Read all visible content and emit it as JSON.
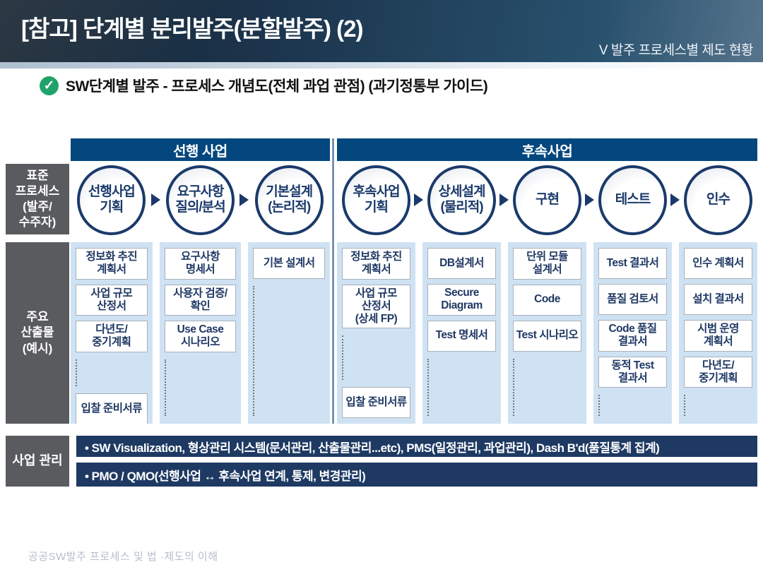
{
  "header": {
    "title": "[참고] 단계별 분리발주(분할발주) (2)",
    "breadcrumb": "V 발주 프로세스별 제도 현황"
  },
  "subtitle": {
    "icon": "check-badge",
    "check_glyph": "✓",
    "text": "SW단계별 발주 - 프로세스 개념도(전체 과업 관점) (과기정통부 가이드)"
  },
  "diagram": {
    "row_labels": {
      "process": "표준\n프로세스\n(발주/\n수주자)",
      "outputs": "주요\n산출물\n(예시)",
      "management": "사업 관리"
    },
    "sections": [
      {
        "title": "선행 사업",
        "phases": [
          {
            "name": "선행사업\n기획",
            "outputs": [
              "정보화 추진\n계획서",
              "사업 규모\n산정서",
              "다년도/\n중기계획"
            ],
            "tail": "입찰 준비서류"
          },
          {
            "name": "요구사항\n질의/분석",
            "outputs": [
              "요구사항\n명세서",
              "사용자 검증/\n확인",
              "Use Case\n시나리오"
            ]
          },
          {
            "name": "기본설계\n(논리적)",
            "outputs": [
              "기본 설계서"
            ]
          }
        ]
      },
      {
        "title": "후속사업",
        "phases": [
          {
            "name": "후속사업\n기획",
            "outputs": [
              "정보화 추진\n계획서",
              "사업 규모\n산정서\n(상세 FP)"
            ],
            "tail": "입찰 준비서류"
          },
          {
            "name": "상세설계\n(물리적)",
            "outputs": [
              "DB설계서",
              "Secure\nDiagram",
              "Test 명세서"
            ]
          },
          {
            "name": "구현",
            "outputs": [
              "단위 모듈\n설계서",
              "Code",
              "Test 시나리오"
            ]
          },
          {
            "name": "테스트",
            "outputs": [
              "Test 결과서",
              "품질 검토서",
              "Code 품질\n결과서",
              "동적 Test\n결과서"
            ]
          },
          {
            "name": "인수",
            "outputs": [
              "인수 계획서",
              "설치 결과서",
              "시범 운영\n계획서",
              "다년도/\n중기계획"
            ]
          }
        ]
      }
    ],
    "management": {
      "bullets": [
        "• SW Visualization, 형상관리 시스템(문서관리, 산출물관리...etc), PMS(일정관리, 과업관리), Dash B'd(품질통계 집계)",
        "• PMO / QMO(선행사업 ↔ 후속사업 연계, 통제, 변경관리)"
      ]
    }
  },
  "footer": {
    "text": "공공SW발주 프로세스 및 법 ·제도의 이해"
  },
  "colors": {
    "header_navy": "#1d3750",
    "section_bar_blue": "#04477e",
    "deep_navy_bar": "#1e3a63",
    "circle_navy": "#1b3a6b",
    "column_bg": "#cfe2f3",
    "sidebar_gray": "#595b5e",
    "check_green": "#1fa36a",
    "box_text_navy": "#1f3864"
  }
}
